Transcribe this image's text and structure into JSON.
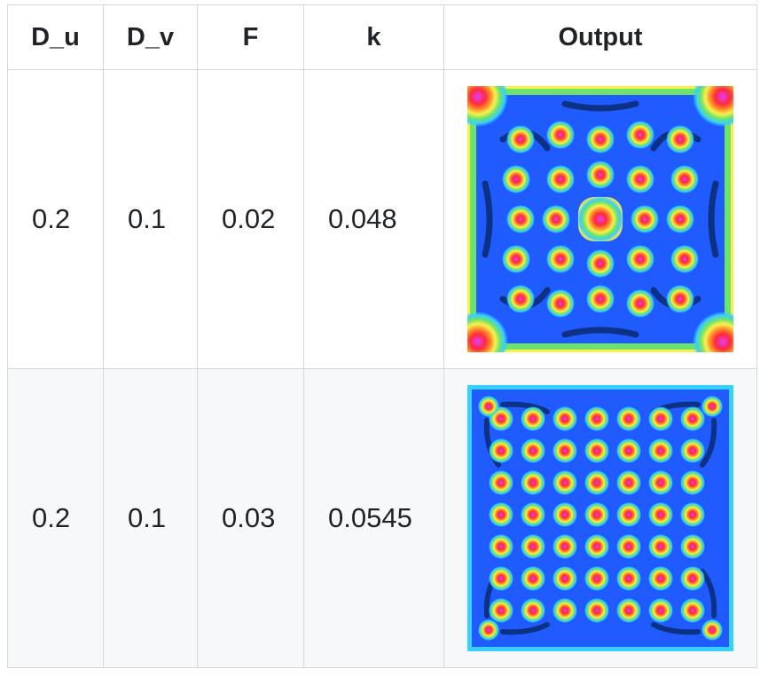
{
  "table": {
    "headers": [
      "D_u",
      "D_v",
      "F",
      "k",
      "Output"
    ],
    "rows": [
      {
        "D_u": "0.2",
        "D_v": "0.1",
        "F": "0.02",
        "k": "0.048",
        "output_image": "reaction-diffusion pattern (cross / flower)"
      },
      {
        "D_u": "0.2",
        "D_v": "0.1",
        "F": "0.03",
        "k": "0.0545",
        "output_image": "reaction-diffusion pattern (spot lattice)"
      }
    ]
  },
  "colors": {
    "border": "#d0d7de",
    "row_alt_bg": "#f6f8fa",
    "pattern_dark": "#0a2a6e",
    "pattern_blue": "#1f5bff",
    "pattern_cyan": "#37d0ff",
    "pattern_green": "#6fe26a",
    "pattern_yellow": "#f7f24a",
    "pattern_orange": "#ff8a2a",
    "pattern_red": "#ff2a3a",
    "pattern_magenta": "#e43cff"
  }
}
